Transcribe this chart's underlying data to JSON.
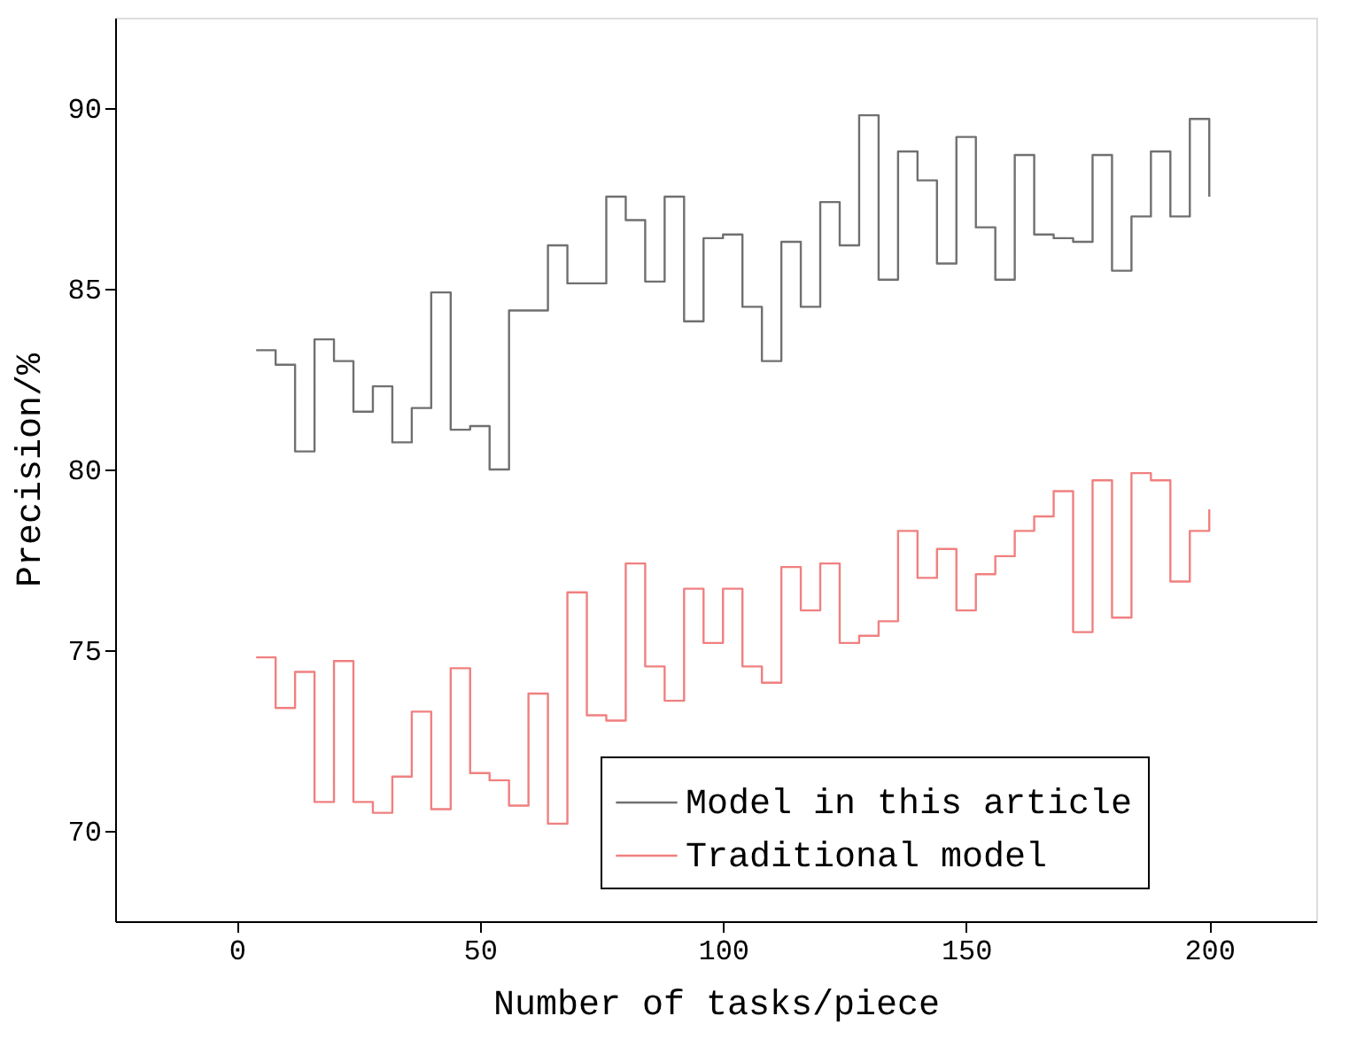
{
  "chart_data": {
    "type": "step",
    "xlabel": "Number of tasks/piece",
    "ylabel": "Precision/%",
    "x": [
      4,
      8,
      12,
      16,
      20,
      24,
      28,
      32,
      36,
      40,
      44,
      48,
      52,
      56,
      60,
      64,
      68,
      72,
      76,
      80,
      84,
      88,
      92,
      96,
      100,
      104,
      108,
      112,
      116,
      120,
      124,
      128,
      132,
      136,
      140,
      144,
      148,
      152,
      156,
      160,
      164,
      168,
      172,
      176,
      180,
      184,
      188,
      192,
      196,
      200
    ],
    "series": [
      {
        "name": "Model in this article",
        "color": "#707070",
        "values": [
          83.3,
          82.9,
          80.5,
          83.6,
          83.0,
          81.6,
          82.3,
          80.75,
          81.7,
          84.9,
          81.1,
          81.2,
          80.0,
          84.4,
          84.4,
          86.2,
          85.15,
          85.15,
          87.55,
          86.9,
          85.2,
          87.55,
          84.1,
          86.4,
          86.5,
          84.5,
          83.0,
          86.3,
          84.5,
          87.4,
          86.2,
          89.8,
          85.25,
          88.8,
          88.0,
          85.7,
          89.2,
          86.7,
          85.25,
          88.7,
          86.5,
          86.4,
          86.3,
          88.7,
          85.5,
          87.0,
          88.8,
          87.0,
          89.7,
          87.55
        ]
      },
      {
        "name": "Traditional model",
        "color": "#f08080",
        "values": [
          74.8,
          73.4,
          74.4,
          70.8,
          74.7,
          70.8,
          70.5,
          71.5,
          73.3,
          70.6,
          74.5,
          71.6,
          71.4,
          70.7,
          73.8,
          70.2,
          76.6,
          73.2,
          73.05,
          77.4,
          74.55,
          73.6,
          76.7,
          75.2,
          76.7,
          74.55,
          74.1,
          77.3,
          76.1,
          77.4,
          75.2,
          75.4,
          75.8,
          78.3,
          77.0,
          77.8,
          76.1,
          77.1,
          77.6,
          78.3,
          78.7,
          79.4,
          75.5,
          79.7,
          75.9,
          79.9,
          79.7,
          76.9,
          78.3,
          78.9
        ]
      }
    ],
    "xlim": [
      -25,
      222
    ],
    "xticks": [
      0,
      50,
      100,
      150,
      200
    ],
    "ylim": [
      67.5,
      92.5
    ],
    "yticks": [
      70,
      75,
      80,
      85,
      90
    ],
    "grid": false,
    "legend": "bottom right",
    "marker": "none",
    "line_style": "solid"
  }
}
